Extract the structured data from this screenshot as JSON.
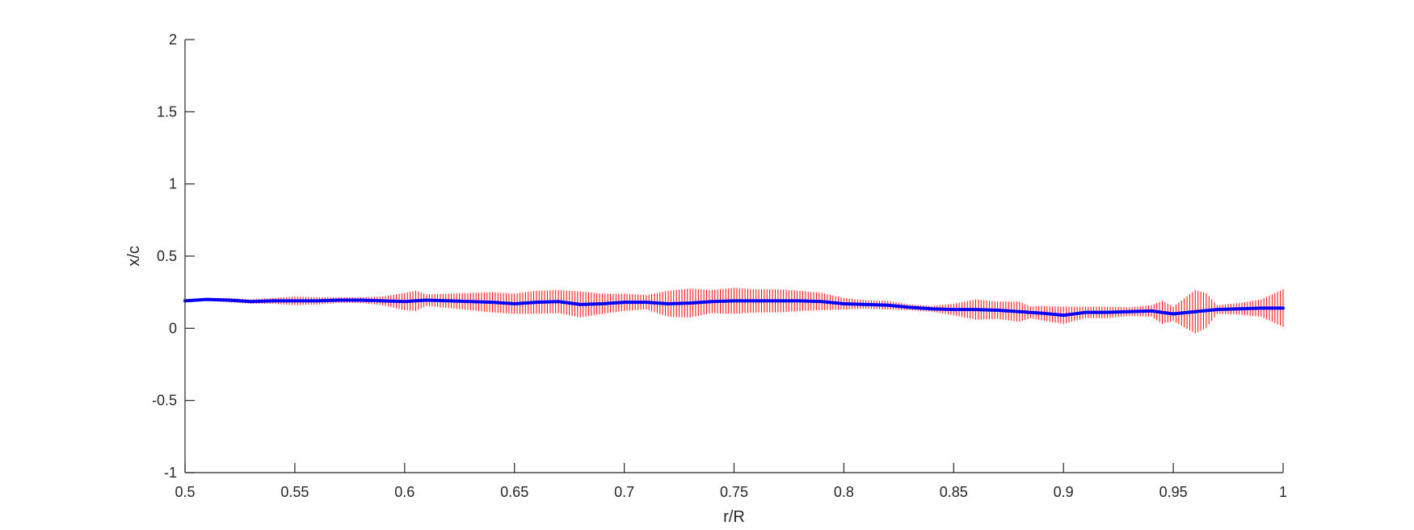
{
  "chart_data": {
    "type": "line",
    "title": "",
    "xlabel": "r/R",
    "ylabel": "x/c",
    "xlim": [
      0.5,
      1.0
    ],
    "ylim": [
      -1,
      2
    ],
    "xticks": [
      0.5,
      0.55,
      0.6,
      0.65,
      0.7,
      0.75,
      0.8,
      0.85,
      0.9,
      0.95,
      1.0
    ],
    "xtick_labels": [
      "0.5",
      "0.55",
      "0.6",
      "0.65",
      "0.7",
      "0.75",
      "0.8",
      "0.85",
      "0.9",
      "0.95",
      "1"
    ],
    "yticks": [
      -1,
      -0.5,
      0,
      0.5,
      1,
      1.5,
      2
    ],
    "ytick_labels": [
      "-1",
      "-0.5",
      "0",
      "0.5",
      "1",
      "1.5",
      "2"
    ],
    "grid": false,
    "box": "left-bottom axes only",
    "series": [
      {
        "style": "solid thick line",
        "color": "#0000ff",
        "x": [
          0.5,
          0.51,
          0.52,
          0.53,
          0.54,
          0.55,
          0.56,
          0.57,
          0.58,
          0.59,
          0.6,
          0.61,
          0.62,
          0.63,
          0.64,
          0.65,
          0.66,
          0.67,
          0.68,
          0.69,
          0.7,
          0.71,
          0.72,
          0.73,
          0.74,
          0.75,
          0.76,
          0.77,
          0.78,
          0.79,
          0.8,
          0.81,
          0.82,
          0.83,
          0.84,
          0.85,
          0.86,
          0.87,
          0.88,
          0.89,
          0.9,
          0.91,
          0.92,
          0.93,
          0.94,
          0.95,
          0.96,
          0.97,
          0.98,
          0.99,
          1.0
        ],
        "y": [
          0.19,
          0.2,
          0.195,
          0.185,
          0.19,
          0.19,
          0.19,
          0.195,
          0.195,
          0.19,
          0.185,
          0.195,
          0.19,
          0.185,
          0.18,
          0.17,
          0.18,
          0.185,
          0.165,
          0.17,
          0.18,
          0.18,
          0.17,
          0.175,
          0.185,
          0.19,
          0.19,
          0.19,
          0.19,
          0.185,
          0.17,
          0.165,
          0.16,
          0.145,
          0.135,
          0.13,
          0.13,
          0.125,
          0.115,
          0.105,
          0.09,
          0.11,
          0.11,
          0.115,
          0.12,
          0.1,
          0.115,
          0.13,
          0.135,
          0.14,
          0.14
        ]
      },
      {
        "style": "vertical error bars",
        "color": "#ff0000",
        "x": [
          0.5,
          0.51,
          0.52,
          0.53,
          0.54,
          0.55,
          0.56,
          0.57,
          0.58,
          0.59,
          0.6,
          0.605,
          0.61,
          0.62,
          0.63,
          0.64,
          0.65,
          0.66,
          0.67,
          0.68,
          0.69,
          0.7,
          0.71,
          0.72,
          0.73,
          0.74,
          0.75,
          0.76,
          0.77,
          0.78,
          0.79,
          0.8,
          0.81,
          0.82,
          0.83,
          0.84,
          0.85,
          0.86,
          0.87,
          0.88,
          0.885,
          0.89,
          0.9,
          0.905,
          0.91,
          0.92,
          0.93,
          0.94,
          0.945,
          0.95,
          0.96,
          0.965,
          0.97,
          0.98,
          0.99,
          1.0
        ],
        "err": [
          0.01,
          0.01,
          0.015,
          0.015,
          0.02,
          0.03,
          0.025,
          0.02,
          0.02,
          0.03,
          0.06,
          0.07,
          0.04,
          0.05,
          0.06,
          0.07,
          0.07,
          0.08,
          0.08,
          0.09,
          0.07,
          0.06,
          0.05,
          0.09,
          0.1,
          0.08,
          0.09,
          0.08,
          0.08,
          0.07,
          0.06,
          0.04,
          0.03,
          0.03,
          0.02,
          0.02,
          0.04,
          0.07,
          0.06,
          0.07,
          0.04,
          0.05,
          0.06,
          0.05,
          0.04,
          0.04,
          0.03,
          0.04,
          0.08,
          0.05,
          0.15,
          0.12,
          0.03,
          0.04,
          0.06,
          0.13
        ]
      }
    ]
  }
}
